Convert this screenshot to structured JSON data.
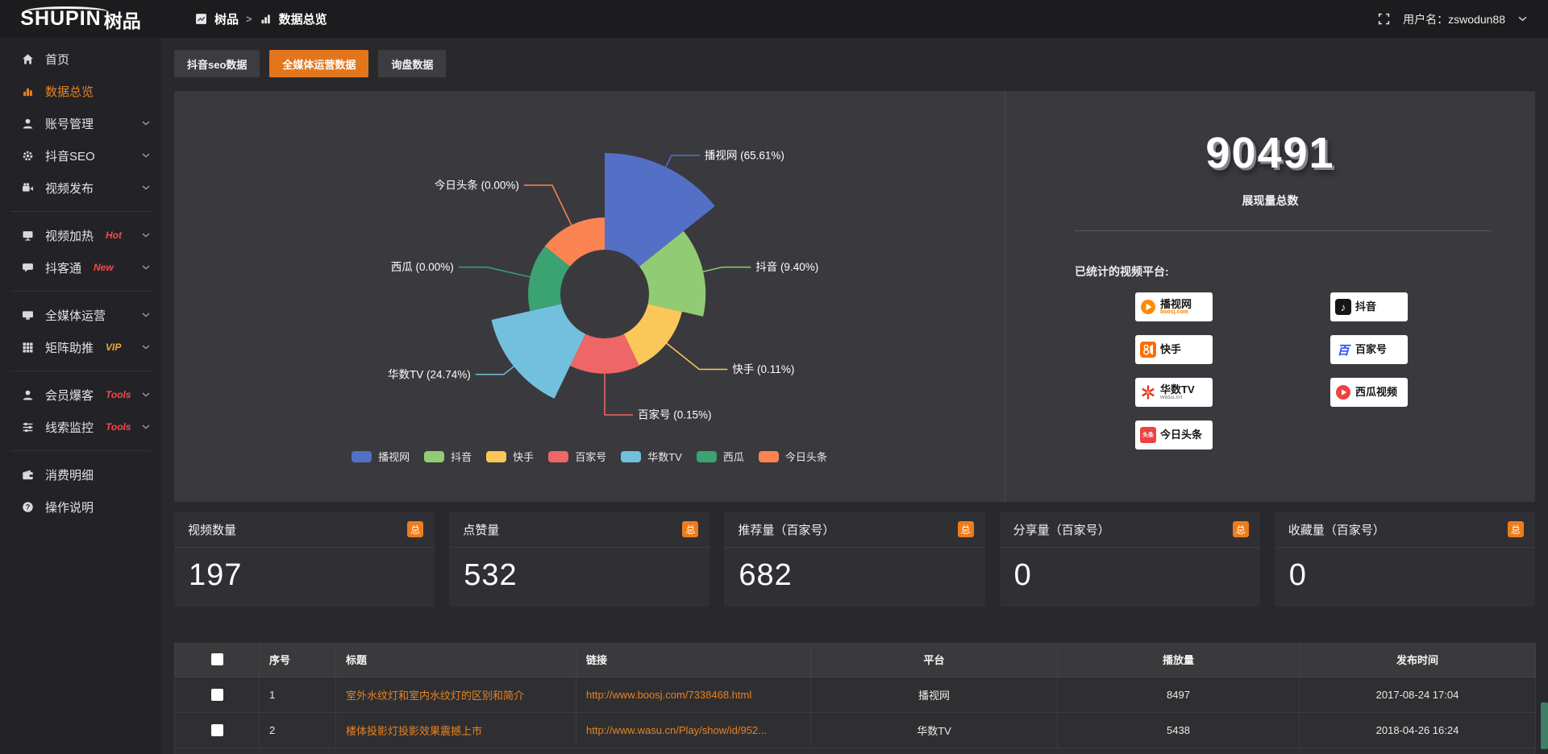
{
  "topbar": {
    "logo_text": "SHUPIN",
    "logo_suffix": "树品",
    "breadcrumb": [
      {
        "label": "树品"
      },
      {
        "label": "数据总览"
      }
    ],
    "breadcrumb_separator": ">",
    "username_label": "用户名：zswodun88"
  },
  "sidebar": {
    "items": [
      {
        "id": "home",
        "label": "首页",
        "icon": "home-icon",
        "active": false,
        "has_chevron": false
      },
      {
        "id": "data-overview",
        "label": "数据总览",
        "icon": "bar-chart-icon",
        "active": true,
        "has_chevron": false
      },
      {
        "id": "account-management",
        "label": "账号管理",
        "icon": "user-icon",
        "has_chevron": true
      },
      {
        "id": "douyin-seo",
        "label": "抖音SEO",
        "icon": "gear-icon",
        "has_chevron": true
      },
      {
        "id": "video-publish",
        "label": "视频发布",
        "icon": "video-camera-icon",
        "has_chevron": true,
        "divider_after": true
      },
      {
        "id": "video-heating",
        "label": "视频加热",
        "icon": "signboard-icon",
        "badge": "Hot",
        "badge_color": "#ff4545",
        "has_chevron": true
      },
      {
        "id": "douketong",
        "label": "抖客通",
        "icon": "chat-icon",
        "badge": "New",
        "badge_color": "#ff4545",
        "has_chevron": true,
        "divider_after": true
      },
      {
        "id": "all-media-operation",
        "label": "全媒体运营",
        "icon": "monitor-icon",
        "has_chevron": true
      },
      {
        "id": "matrix-boost",
        "label": "矩阵助推",
        "icon": "grid-icon",
        "badge": "VIP",
        "badge_color": "#f0a637",
        "has_chevron": true,
        "divider_after": true
      },
      {
        "id": "member-baoke",
        "label": "会员爆客",
        "icon": "member-icon",
        "badge": "Tools",
        "badge_color": "#ff4545",
        "has_chevron": true
      },
      {
        "id": "lead-monitoring",
        "label": "线索监控",
        "icon": "sliders-icon",
        "badge": "Tools",
        "badge_color": "#ff4545",
        "has_chevron": true,
        "divider_after": true
      },
      {
        "id": "consumption-details",
        "label": "消费明细",
        "icon": "wallet-icon",
        "has_chevron": false
      },
      {
        "id": "operation-guide",
        "label": "操作说明",
        "icon": "help-icon",
        "has_chevron": false
      }
    ]
  },
  "tabs": [
    {
      "id": "douyin-seo-data",
      "label": "抖音seo数据",
      "active": false
    },
    {
      "id": "all-media-data",
      "label": "全媒体运营数据",
      "active": true
    },
    {
      "id": "inquiry-data",
      "label": "询盘数据",
      "active": false
    }
  ],
  "chart_data": {
    "type": "pie",
    "subtype": "nightingale-rose",
    "label_format": "{name} ({pct}%)",
    "legend_position": "bottom",
    "items": [
      {
        "name": "播视网",
        "pct": 65.61,
        "color": "#5470c6"
      },
      {
        "name": "抖音",
        "pct": 9.4,
        "color": "#91cc75"
      },
      {
        "name": "快手",
        "pct": 0.11,
        "color": "#fac858"
      },
      {
        "name": "百家号",
        "pct": 0.15,
        "color": "#ee6666"
      },
      {
        "name": "华数TV",
        "pct": 24.74,
        "color": "#73c0de"
      },
      {
        "name": "西瓜",
        "pct": 0.0,
        "color": "#3ba272"
      },
      {
        "name": "今日头条",
        "pct": 0.0,
        "color": "#fc8452"
      }
    ]
  },
  "summary": {
    "value": "90491",
    "label": "展现量总数",
    "platforms_title": "已统计的视频平台:",
    "platforms": [
      {
        "logo": "boosj",
        "name": "播视网",
        "sub": "boosj.com"
      },
      {
        "logo": "douyin",
        "name": "抖音",
        "sub": ""
      },
      {
        "logo": "kuaishou",
        "name": "快手",
        "sub": ""
      },
      {
        "logo": "baijiahao",
        "name": "百家号",
        "sub": ""
      },
      {
        "logo": "wasu",
        "name": "华数TV",
        "sub": "wasu.cn"
      },
      {
        "logo": "xigua",
        "name": "西瓜视频",
        "sub": ""
      },
      {
        "logo": "toutiao",
        "name": "今日头条",
        "sub": ""
      }
    ]
  },
  "stat_cards": [
    {
      "id": "video-count",
      "title": "视频数量",
      "badge": "总",
      "value": "197"
    },
    {
      "id": "likes",
      "title": "点赞量",
      "badge": "总",
      "value": "532"
    },
    {
      "id": "recommends-baijiahao",
      "title": "推荐量（百家号）",
      "badge": "总",
      "value": "682"
    },
    {
      "id": "shares-baijiahao",
      "title": "分享量（百家号）",
      "badge": "总",
      "value": "0"
    },
    {
      "id": "favorites-baijiahao",
      "title": "收藏量（百家号）",
      "badge": "总",
      "value": "0"
    }
  ],
  "table": {
    "columns": [
      "序号",
      "标题",
      "链接",
      "平台",
      "播放量",
      "发布时间"
    ],
    "rows": [
      {
        "index": "1",
        "title": "室外水纹灯和室内水纹灯的区别和简介",
        "link": "http://www.boosj.com/7338468.html",
        "platform": "播视网",
        "plays": "8497",
        "time": "2017-08-24 17:04"
      },
      {
        "index": "2",
        "title": "楼体投影灯投影效果震撼上市",
        "link": "http://www.wasu.cn/Play/show/id/952...",
        "platform": "华数TV",
        "plays": "5438",
        "time": "2018-04-26 16:24"
      }
    ]
  },
  "colors": {
    "accent_orange": "#e2761c",
    "link_orange": "#e8821f",
    "hot_badge_red": "#ff4545",
    "vip_gold": "#f0a637",
    "pie_palette": [
      "#5470c6",
      "#91cc75",
      "#fac858",
      "#ee6666",
      "#73c0de",
      "#3ba272",
      "#fc8452"
    ]
  }
}
